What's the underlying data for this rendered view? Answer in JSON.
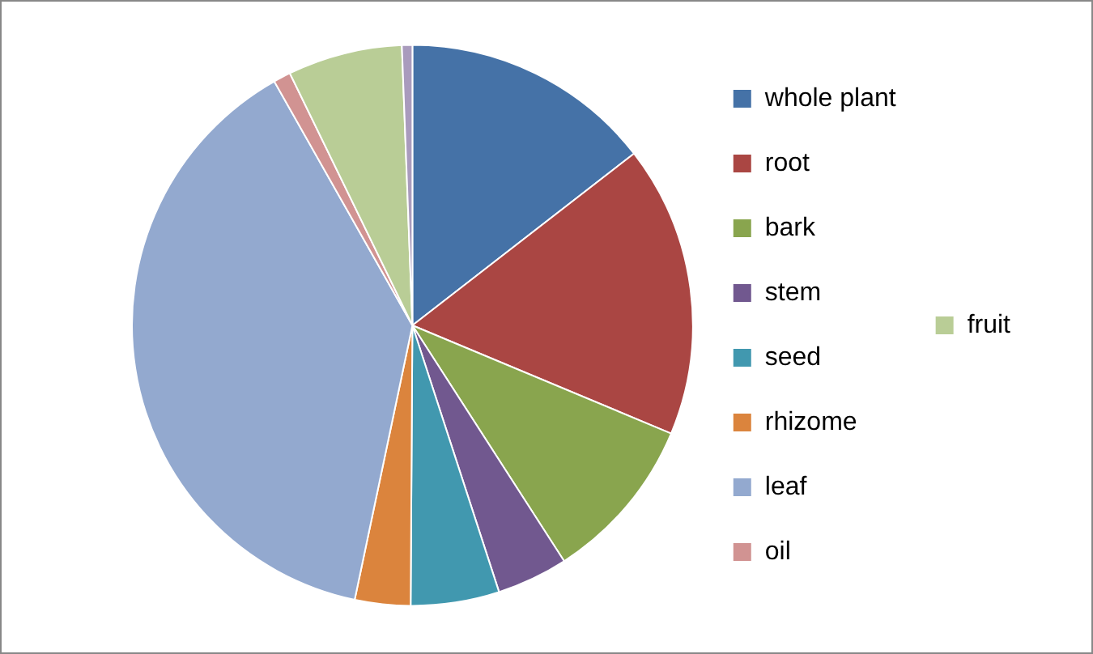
{
  "chart_data": {
    "type": "pie",
    "categories": [
      "whole plant",
      "root",
      "bark",
      "stem",
      "seed",
      "rhizome",
      "leaf",
      "oil",
      "fruit",
      null
    ],
    "values": [
      14.5,
      16.8,
      9.6,
      4.1,
      5.1,
      3.2,
      38.5,
      1.0,
      6.6,
      0.6
    ],
    "colors": [
      "#4572a7",
      "#aa4643",
      "#89a54e",
      "#71588f",
      "#4198af",
      "#db843d",
      "#93a9cf",
      "#d19392",
      "#b9cd96",
      "#a99bbd"
    ],
    "legend": "right"
  }
}
